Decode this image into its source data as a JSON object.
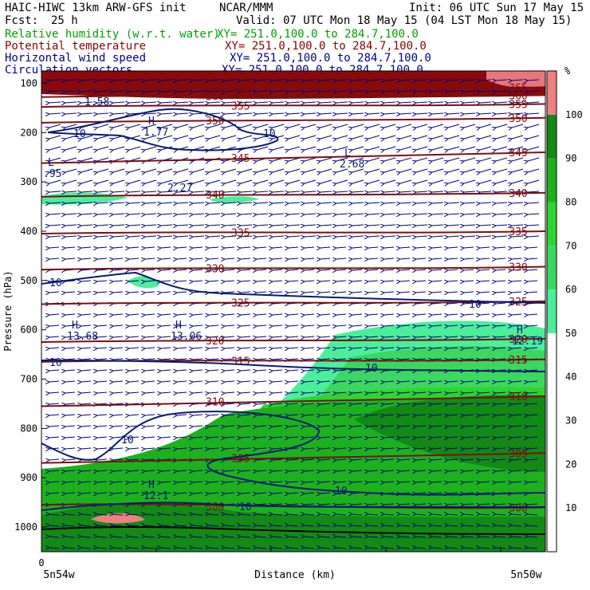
{
  "header": {
    "model": "HAIC-HIWC 13km ARW-GFS init",
    "org": "NCAR/MMM",
    "init": "Init: 06 UTC Sun 17 May 15",
    "fcst_label": "Fcst:",
    "fcst_value": "25 h",
    "valid": "Valid: 07 UTC Mon 18 May 15 (04 LST Mon 18 May 15)"
  },
  "fields": [
    {
      "name": "Relative humidity (w.r.t. water)",
      "xy": "XY= 251.0,100.0 to 284.7,100.0",
      "color": "#00a000"
    },
    {
      "name": "Potential temperature",
      "xy": "XY= 251.0,100.0 to 284.7,100.0",
      "color": "#8b0000"
    },
    {
      "name": "Horizontal wind speed",
      "xy": "XY= 251.0,100.0 to 284.7,100.0",
      "color": "#000080"
    },
    {
      "name": "Circulation vectors",
      "xy": "XY= 251.0,100.0 to 284.7,100.0",
      "color": "#000080"
    }
  ],
  "chart_data": {
    "type": "heatmap",
    "xlabel": "Distance (km)",
    "ylabel": "Pressure (hPa)",
    "ylim": [
      1050,
      75
    ],
    "y_ticks": [
      100,
      200,
      300,
      400,
      500,
      600,
      700,
      800,
      900,
      1000
    ],
    "x_tick_label": "0",
    "x_left_label": "5n54w",
    "x_right_label": "5n50w",
    "colorbar": {
      "unit": "%",
      "ticks": [
        10,
        20,
        30,
        40,
        50,
        60,
        70,
        80,
        90,
        100
      ],
      "bands": [
        {
          "from": 0,
          "to": 50,
          "color": "#ffffff"
        },
        {
          "from": 50,
          "to": 60,
          "color": "#4cee9a"
        },
        {
          "from": 60,
          "to": 70,
          "color": "#3cd75e"
        },
        {
          "from": 70,
          "to": 80,
          "color": "#2ed52e"
        },
        {
          "from": 80,
          "to": 90,
          "color": "#1db21d"
        },
        {
          "from": 90,
          "to": 100,
          "color": "#138a13"
        },
        {
          "from": 100,
          "to": 110,
          "color": "#f08080"
        }
      ]
    },
    "theta_contours": [
      {
        "value": 300,
        "left": 955,
        "right": 960,
        "label": "300"
      },
      {
        "value": 305,
        "left": 870,
        "right": 850,
        "label": "305"
      },
      {
        "value": 310,
        "left": 755,
        "right": 735,
        "label": "310"
      },
      {
        "value": 315,
        "left": 665,
        "right": 660,
        "label": "315"
      },
      {
        "value": 320,
        "left": 625,
        "right": 618,
        "label": "320"
      },
      {
        "value": 325,
        "left": 548,
        "right": 542,
        "label": "325"
      },
      {
        "value": 330,
        "left": 478,
        "right": 472,
        "label": "330"
      },
      {
        "value": 335,
        "left": 405,
        "right": 400,
        "label": "335"
      },
      {
        "value": 340,
        "left": 330,
        "right": 322,
        "label": "340"
      },
      {
        "value": 345,
        "left": 262,
        "right": 240,
        "label": "345"
      },
      {
        "value": 350,
        "left": 180,
        "right": 170,
        "label": "350"
      },
      {
        "value": 355,
        "left": 148,
        "right": 142,
        "label": "355"
      },
      {
        "value": 360,
        "left": 128,
        "right": 124,
        "label": "360"
      },
      {
        "value": 365,
        "left": 112,
        "right": 108,
        "label": "365"
      }
    ],
    "wind_labels": [
      "10",
      "10",
      "10",
      "10",
      "10",
      "10",
      "10",
      "10"
    ],
    "extrema": [
      {
        "mark": "H",
        "value": "1.77"
      },
      {
        "mark": "L",
        "value": "2.68"
      },
      {
        "mark": "",
        "value": "2.27"
      },
      {
        "mark": "L",
        "value": ".95"
      },
      {
        "mark": "H",
        "value": "13.68"
      },
      {
        "mark": "H",
        "value": "13.06"
      },
      {
        "mark": "H",
        "value": "12.19"
      },
      {
        "mark": "H",
        "value": "12.1"
      },
      {
        "mark": "",
        "value": "1.58"
      }
    ]
  }
}
